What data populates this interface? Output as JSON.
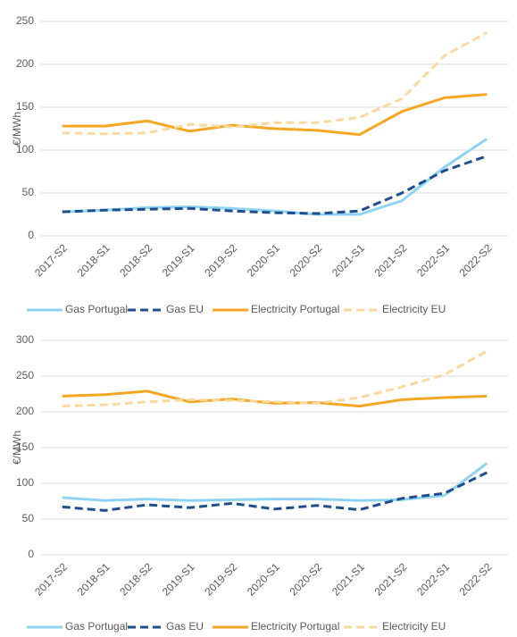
{
  "chart_data": [
    {
      "type": "line",
      "y_label": "€/MWh",
      "categories": [
        "2017-S2",
        "2018-S1",
        "2018-S2",
        "2019-S1",
        "2019-S2",
        "2020-S1",
        "2020-S2",
        "2021-S1",
        "2021-S2",
        "2022-S1",
        "2022-S2"
      ],
      "series": [
        {
          "name": "Gas Portugal",
          "color": "#8fd3f2",
          "dashed": false,
          "values": [
            28,
            30,
            33,
            34,
            32,
            29,
            25,
            25,
            41,
            80,
            113
          ]
        },
        {
          "name": "Gas EU",
          "color": "#1f4e8c",
          "dashed": true,
          "values": [
            28,
            30,
            31,
            32,
            29,
            27,
            26,
            29,
            50,
            76,
            93
          ]
        },
        {
          "name": "Electricity Portugal",
          "color": "#f5a623",
          "dashed": false,
          "values": [
            128,
            128,
            134,
            122,
            129,
            125,
            123,
            118,
            145,
            161,
            165
          ]
        },
        {
          "name": "Electricity EU",
          "color": "#fad9a0",
          "dashed": true,
          "values": [
            120,
            119,
            120,
            130,
            127,
            132,
            132,
            138,
            160,
            210,
            237
          ]
        }
      ],
      "ylim": [
        0,
        250
      ],
      "yticks": [
        0,
        50,
        100,
        150,
        200,
        250
      ],
      "grid": true,
      "legend": "bottom"
    },
    {
      "type": "line",
      "y_label": "€/MWh",
      "categories": [
        "2017-S2",
        "2018-S1",
        "2018-S2",
        "2019-S1",
        "2019-S2",
        "2020-S1",
        "2020-S2",
        "2021-S1",
        "2021-S2",
        "2022-S1",
        "2022-S2"
      ],
      "series": [
        {
          "name": "Gas Portugal",
          "color": "#8fd3f2",
          "dashed": false,
          "values": [
            80,
            76,
            78,
            76,
            77,
            78,
            78,
            76,
            77,
            83,
            128
          ]
        },
        {
          "name": "Gas EU",
          "color": "#1f4e8c",
          "dashed": true,
          "values": [
            67,
            62,
            70,
            66,
            72,
            64,
            69,
            63,
            79,
            86,
            115
          ]
        },
        {
          "name": "Electricity Portugal",
          "color": "#f5a623",
          "dashed": false,
          "values": [
            222,
            224,
            229,
            214,
            218,
            212,
            213,
            208,
            217,
            220,
            222
          ]
        },
        {
          "name": "Electricity EU",
          "color": "#fad9a0",
          "dashed": true,
          "values": [
            208,
            210,
            214,
            217,
            216,
            214,
            212,
            220,
            235,
            252,
            285
          ]
        }
      ],
      "ylim": [
        0,
        300
      ],
      "yticks": [
        0,
        50,
        100,
        150,
        200,
        250,
        300
      ],
      "grid": true,
      "legend": "bottom"
    }
  ]
}
